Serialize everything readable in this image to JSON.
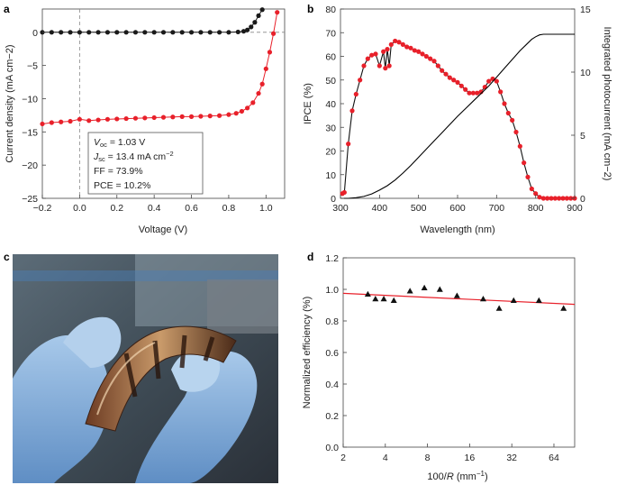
{
  "panels": {
    "a": {
      "label": "a"
    },
    "b": {
      "label": "b"
    },
    "c": {
      "label": "c"
    },
    "d": {
      "label": "d"
    }
  },
  "chart_data": [
    {
      "panel": "a",
      "type": "line",
      "xlabel": "Voltage (V)",
      "ylabel": "Current density (mA cm−2)",
      "xlim": [
        -0.2,
        1.1
      ],
      "ylim": [
        -25,
        3.5
      ],
      "xticks": [
        "−0.2",
        "0.0",
        "0.2",
        "0.4",
        "0.6",
        "0.8",
        "1.0"
      ],
      "yticks": [
        "0",
        "−5",
        "−10",
        "−15",
        "−20",
        "−25"
      ],
      "dashed_zero_lines": true,
      "series": [
        {
          "color": "#1a1a1a",
          "x": [
            -0.2,
            -0.15,
            -0.1,
            -0.05,
            0.0,
            0.05,
            0.1,
            0.15,
            0.2,
            0.25,
            0.3,
            0.35,
            0.4,
            0.45,
            0.5,
            0.55,
            0.6,
            0.65,
            0.7,
            0.75,
            0.8,
            0.85,
            0.88,
            0.9,
            0.92,
            0.94,
            0.96,
            0.98
          ],
          "y": [
            0,
            0,
            0,
            0,
            0,
            0,
            0,
            0,
            0,
            0,
            0,
            0,
            0,
            0,
            0,
            0,
            0,
            0,
            0,
            0,
            0,
            0.05,
            0.15,
            0.35,
            0.8,
            1.5,
            2.5,
            3.4
          ]
        },
        {
          "color": "#e8202a",
          "x": [
            -0.2,
            -0.15,
            -0.1,
            -0.05,
            0.0,
            0.05,
            0.1,
            0.15,
            0.2,
            0.25,
            0.3,
            0.35,
            0.4,
            0.45,
            0.5,
            0.55,
            0.6,
            0.65,
            0.7,
            0.75,
            0.8,
            0.84,
            0.87,
            0.9,
            0.93,
            0.96,
            0.98,
            1.0,
            1.02,
            1.04,
            1.06
          ],
          "y": [
            -13.8,
            -13.6,
            -13.5,
            -13.4,
            -13.1,
            -13.3,
            -13.2,
            -13.1,
            -13.05,
            -13.0,
            -12.95,
            -12.9,
            -12.85,
            -12.8,
            -12.75,
            -12.7,
            -12.7,
            -12.65,
            -12.6,
            -12.55,
            -12.4,
            -12.2,
            -11.9,
            -11.4,
            -10.6,
            -9.2,
            -7.8,
            -5.5,
            -3.0,
            -0.2,
            3.0
          ]
        }
      ],
      "annotation": {
        "voc_sym": "V",
        "voc_sub": "oc",
        "voc_val": " = 1.03 V",
        "jsc_sym": "J",
        "jsc_sub": "sc",
        "jsc_val": " = 13.4 mA cm",
        "jsc_exp": "−2",
        "ff": "FF = 73.9%",
        "pce": "PCE = 10.2%"
      }
    },
    {
      "panel": "b",
      "type": "line",
      "xlabel": "Wavelength (nm)",
      "ylabel": "IPCE (%)",
      "ylabel_right": "Integrated photocurrent  (mA cm−2)",
      "xlim": [
        300,
        900
      ],
      "ylim": [
        0,
        80
      ],
      "ylim_right": [
        0,
        15
      ],
      "xticks": [
        "300",
        "400",
        "500",
        "600",
        "700",
        "800",
        "900"
      ],
      "yticks": [
        "0",
        "10",
        "20",
        "30",
        "40",
        "50",
        "60",
        "70",
        "80"
      ],
      "yticks_right": [
        "0",
        "5",
        "10",
        "15"
      ],
      "series": [
        {
          "color": "#e8202a",
          "axis": "left",
          "x": [
            305,
            310,
            320,
            330,
            340,
            350,
            360,
            370,
            380,
            390,
            400,
            410,
            415,
            420,
            425,
            430,
            440,
            450,
            460,
            470,
            480,
            490,
            500,
            510,
            520,
            530,
            540,
            550,
            560,
            570,
            580,
            590,
            600,
            610,
            620,
            630,
            640,
            650,
            660,
            670,
            680,
            690,
            700,
            710,
            720,
            730,
            740,
            750,
            760,
            770,
            780,
            790,
            800,
            810,
            820,
            830,
            840,
            850,
            860,
            870,
            880,
            890,
            900
          ],
          "y": [
            2,
            2.5,
            23,
            37,
            44,
            50,
            56,
            59,
            60.5,
            61,
            56,
            62,
            55,
            63,
            56,
            65,
            66.5,
            66,
            65,
            64,
            63.5,
            62.5,
            62,
            61,
            60,
            59,
            58,
            56,
            54,
            52.5,
            51,
            50,
            49,
            47.5,
            46,
            44.5,
            44.5,
            44.5,
            45,
            47,
            49.5,
            50.5,
            49.5,
            45,
            40,
            36,
            33,
            28,
            22,
            15,
            9,
            4,
            2,
            0.5,
            0,
            0,
            0,
            0,
            0,
            0,
            0,
            0,
            0
          ]
        },
        {
          "color": "#000000",
          "axis": "right",
          "x": [
            300,
            320,
            340,
            360,
            380,
            400,
            420,
            440,
            460,
            480,
            500,
            520,
            540,
            560,
            580,
            600,
            620,
            640,
            660,
            680,
            700,
            720,
            740,
            760,
            780,
            790,
            800,
            810,
            820,
            900
          ],
          "y": [
            0,
            0,
            0.05,
            0.15,
            0.35,
            0.65,
            1.0,
            1.45,
            2.0,
            2.6,
            3.25,
            3.9,
            4.55,
            5.2,
            5.85,
            6.5,
            7.1,
            7.7,
            8.3,
            8.9,
            9.6,
            10.3,
            11.0,
            11.7,
            12.3,
            12.6,
            12.8,
            12.95,
            13.0,
            13.0
          ]
        }
      ]
    },
    {
      "panel": "d",
      "type": "scatter",
      "xlabel_num": "100/",
      "xlabel_var": "R",
      "xlabel_unit": "  (mm",
      "xlabel_exp": "−1",
      "xlabel_close": ")",
      "ylabel": "Normalized efficiency (%)",
      "xscale": "log2",
      "xlim": [
        2,
        90
      ],
      "ylim": [
        0,
        1.2
      ],
      "xticks": [
        "2",
        "4",
        "8",
        "16",
        "32",
        "64"
      ],
      "yticks": [
        "0.0",
        "0.2",
        "0.4",
        "0.6",
        "0.8",
        "1.0",
        "1.2"
      ],
      "points": {
        "x": [
          3.0,
          3.4,
          3.9,
          4.6,
          6.0,
          7.6,
          9.8,
          13,
          20,
          26,
          33,
          50,
          75
        ],
        "y": [
          0.97,
          0.94,
          0.94,
          0.93,
          0.99,
          1.01,
          1.0,
          0.96,
          0.94,
          0.88,
          0.93,
          0.93,
          0.88
        ]
      },
      "fit": {
        "color": "#e8202a",
        "x": [
          2,
          90
        ],
        "y": [
          0.975,
          0.905
        ]
      }
    }
  ],
  "photo": {
    "icon": "flexible-solar-cell-photo"
  }
}
